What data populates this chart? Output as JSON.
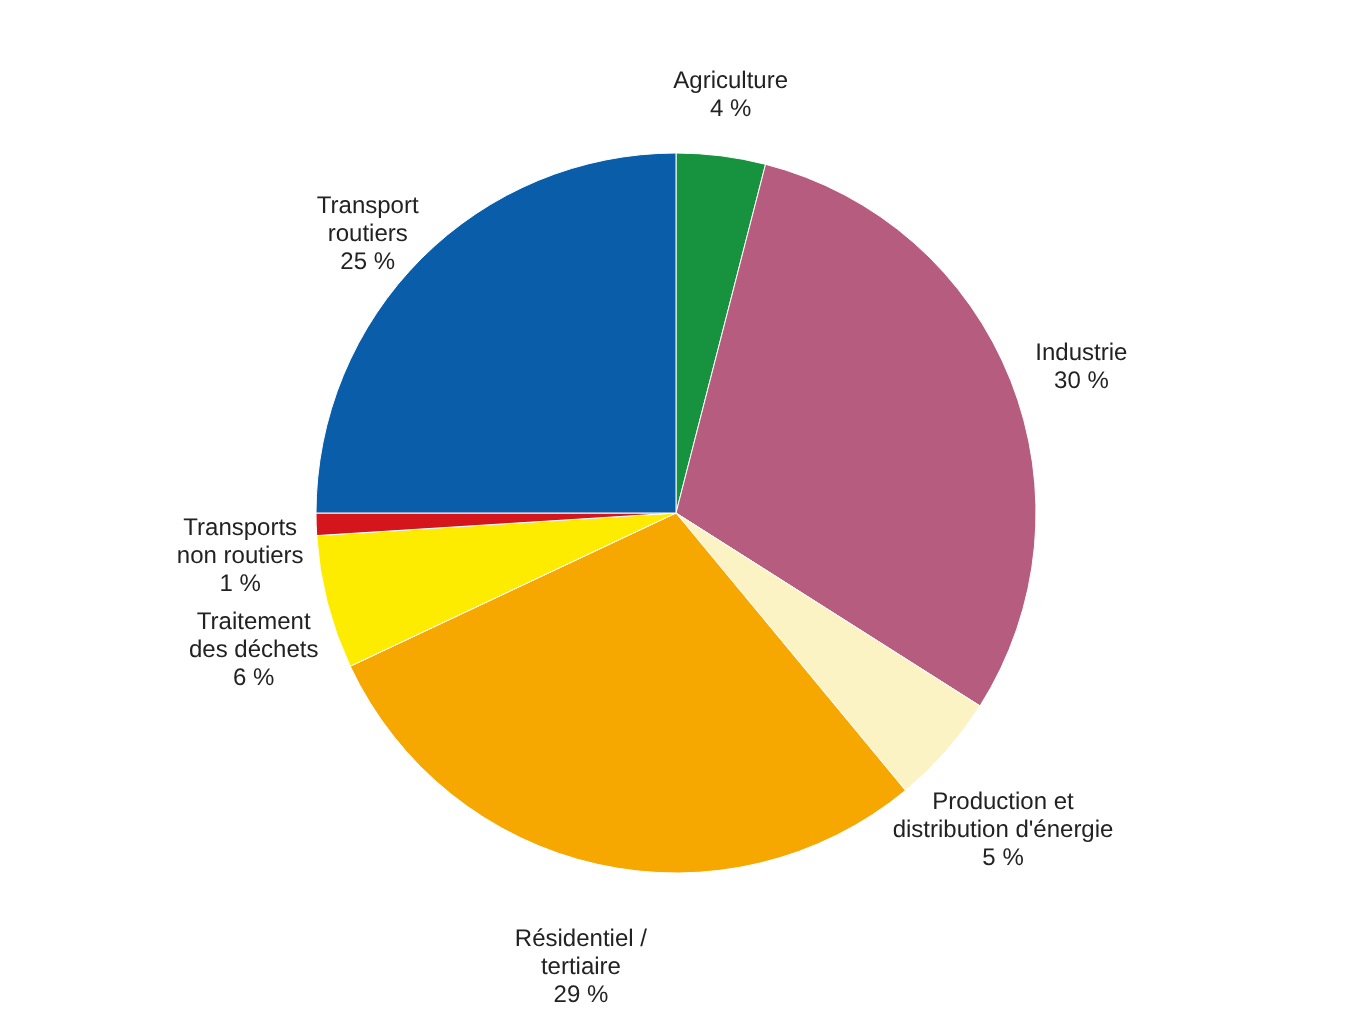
{
  "chart_data": {
    "type": "pie",
    "categories": [
      "Agriculture",
      "Industrie",
      "Production et\ndistribution d'énergie",
      "Résidentiel /\ntertiaire",
      "Traitement\ndes déchets",
      "Transports\nnon routiers",
      "Transport\nroutiers"
    ],
    "values": [
      4,
      30,
      5,
      29,
      6,
      1,
      25
    ],
    "value_labels": [
      "4 %",
      "30 %",
      "5 %",
      "29 %",
      "6 %",
      "1 %",
      "25 %"
    ],
    "colors": [
      "#17923f",
      "#b65c7f",
      "#fcf3c4",
      "#f6a800",
      "#fdeb00",
      "#d4161c",
      "#0a5ea9"
    ]
  }
}
